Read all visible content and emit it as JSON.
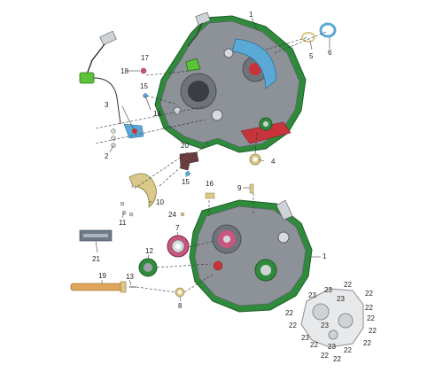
{
  "callouts": {
    "c1": "1",
    "c1b": "1",
    "c2": "2",
    "c3": "3",
    "c4": "4",
    "c5": "5",
    "c6": "6",
    "c7": "7",
    "c8": "8",
    "c9": "9",
    "c10": "10",
    "c11": "11",
    "c12": "12",
    "c13": "13",
    "c14": "14",
    "c15a": "15",
    "c15b": "15",
    "c16": "16",
    "c17": "17",
    "c18": "18",
    "c19": "19",
    "c20": "20",
    "c21": "21",
    "c24": "24",
    "r22": [
      "22",
      "22",
      "22",
      "22",
      "22",
      "22",
      "22",
      "22",
      "22",
      "22",
      "22",
      "22"
    ],
    "r23": [
      "23",
      "23",
      "23",
      "23",
      "23",
      "23"
    ]
  },
  "colors": {
    "casing": "#8d9298",
    "casing_dark": "#5e636a",
    "gasket": "#2f8a3c",
    "seal_blue": "#5aa9d6",
    "red_part": "#c8343b",
    "yellow_part": "#d9c98a",
    "pink_part": "#c9567e",
    "sensor_green": "#5bc23a"
  }
}
